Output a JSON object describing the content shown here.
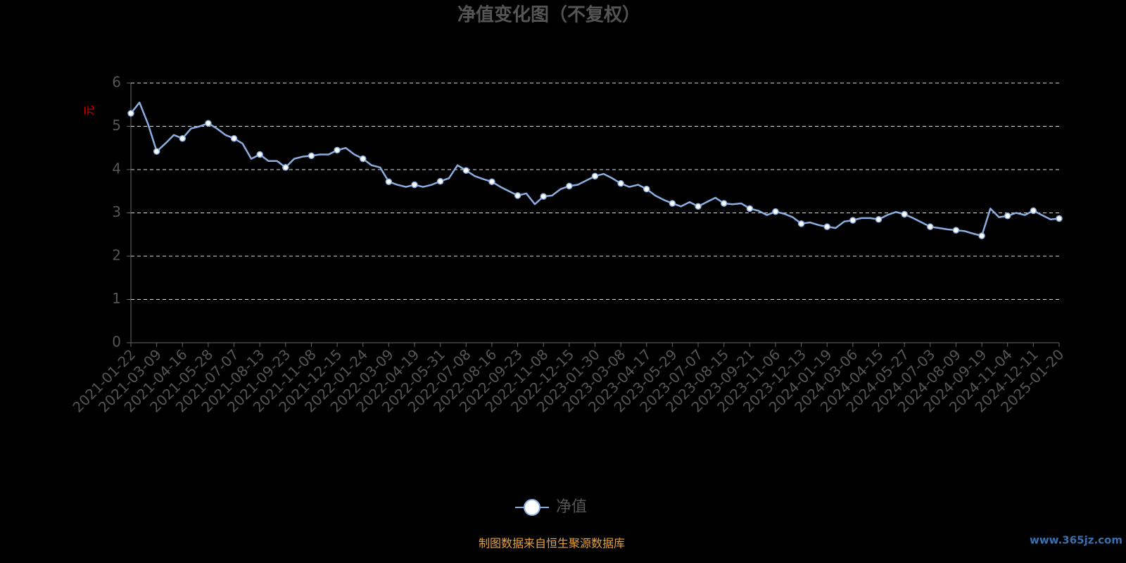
{
  "chart_data": {
    "type": "line",
    "title": "净值变化图（不复权）",
    "y_label": "元",
    "categories": [
      "2021-01-22",
      null,
      null,
      "2021-03-09",
      null,
      null,
      "2021-04-16",
      null,
      null,
      "2021-05-28",
      null,
      null,
      "2021-07-07",
      null,
      null,
      "2021-08-13",
      null,
      null,
      "2021-09-23",
      null,
      null,
      "2021-11-08",
      null,
      null,
      "2021-12-15",
      null,
      null,
      "2022-01-24",
      null,
      null,
      "2022-03-09",
      null,
      null,
      "2022-04-19",
      null,
      null,
      "2022-05-31",
      null,
      null,
      "2022-07-08",
      null,
      null,
      "2022-08-16",
      null,
      null,
      "2022-09-23",
      null,
      null,
      "2022-11-08",
      null,
      null,
      "2022-12-15",
      null,
      null,
      "2023-01-30",
      null,
      null,
      "2023-03-08",
      null,
      null,
      "2023-04-17",
      null,
      null,
      "2023-05-29",
      null,
      null,
      "2023-07-07",
      null,
      null,
      "2023-08-15",
      null,
      null,
      "2023-09-21",
      null,
      null,
      "2023-11-06",
      null,
      null,
      "2023-12-13",
      null,
      null,
      "2024-01-19",
      null,
      null,
      "2024-03-06",
      null,
      null,
      "2024-04-15",
      null,
      null,
      "2024-05-27",
      null,
      null,
      "2024-07-03",
      null,
      null,
      "2024-08-09",
      null,
      null,
      "2024-09-19",
      null,
      null,
      "2024-11-04",
      null,
      null,
      "2024-12-11",
      null,
      null,
      "2025-01-20"
    ],
    "series": [
      {
        "name": "净值",
        "color": "#8aaee0",
        "values": [
          5.3,
          5.55,
          5.05,
          4.42,
          4.6,
          4.8,
          4.72,
          4.95,
          5.0,
          5.07,
          4.95,
          4.8,
          4.72,
          4.6,
          4.25,
          4.35,
          4.2,
          4.2,
          4.05,
          4.25,
          4.3,
          4.32,
          4.35,
          4.35,
          4.45,
          4.5,
          4.35,
          4.25,
          4.1,
          4.05,
          3.72,
          3.65,
          3.6,
          3.65,
          3.6,
          3.65,
          3.73,
          3.8,
          4.1,
          3.98,
          3.85,
          3.78,
          3.72,
          3.6,
          3.5,
          3.4,
          3.45,
          3.2,
          3.38,
          3.4,
          3.55,
          3.62,
          3.65,
          3.75,
          3.85,
          3.9,
          3.8,
          3.68,
          3.6,
          3.65,
          3.55,
          3.4,
          3.3,
          3.22,
          3.15,
          3.25,
          3.15,
          3.25,
          3.35,
          3.22,
          3.2,
          3.22,
          3.1,
          3.05,
          2.95,
          3.03,
          2.98,
          2.9,
          2.75,
          2.78,
          2.72,
          2.68,
          2.65,
          2.8,
          2.83,
          2.88,
          2.88,
          2.85,
          2.95,
          3.02,
          2.97,
          2.88,
          2.78,
          2.68,
          2.65,
          2.62,
          2.6,
          2.58,
          2.52,
          2.47,
          3.1,
          2.9,
          2.93,
          3.0,
          2.95,
          3.05,
          2.95,
          2.85,
          2.87
        ]
      }
    ],
    "ylim": [
      0,
      6
    ],
    "yticks": [
      0,
      1,
      2,
      3,
      4,
      5,
      6
    ],
    "grid": true,
    "legend": "bottom"
  },
  "source": "制图数据来自恒生聚源数据库",
  "watermark": "www.365jz.com"
}
